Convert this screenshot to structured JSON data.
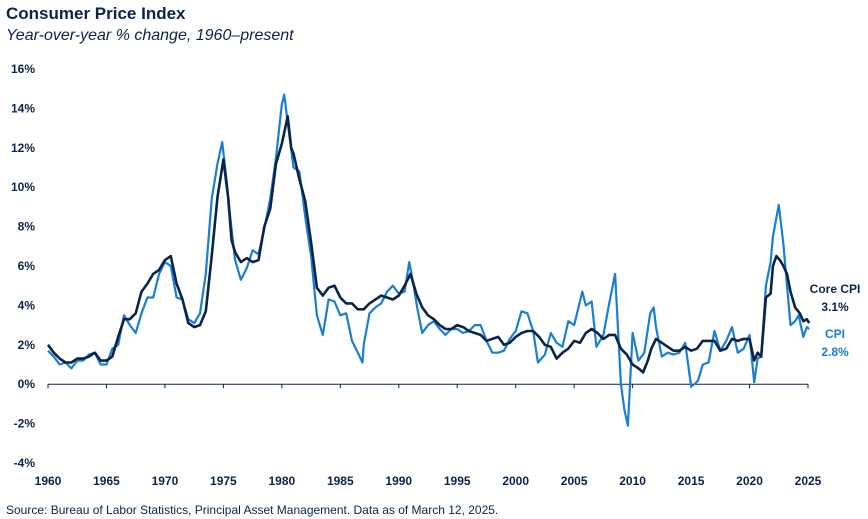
{
  "header": {
    "title": "Consumer Price Index",
    "subtitle": "Year-over-year % change, 1960–present"
  },
  "footer": {
    "source": "Source: Bureau of Labor Statistics, Principal Asset Management. Data as of March 12, 2025."
  },
  "colors": {
    "core_cpi": "#0b2447",
    "cpi": "#1a7fd0",
    "axis": "#0b2447",
    "text": "#0b2447"
  },
  "chart_data": {
    "type": "line",
    "title": "Consumer Price Index",
    "subtitle": "Year-over-year % change, 1960–present",
    "xlabel": "",
    "ylabel": "",
    "xlim": [
      1960,
      2025
    ],
    "ylim": [
      -4,
      16
    ],
    "grid": false,
    "x_ticks": [
      1960,
      1965,
      1970,
      1975,
      1980,
      1985,
      1990,
      1995,
      2000,
      2005,
      2010,
      2015,
      2020,
      2025
    ],
    "x_tick_labels": [
      "1960",
      "1965",
      "1970",
      "1975",
      "1980",
      "1985",
      "1990",
      "1995",
      "2000",
      "2005",
      "2010",
      "2015",
      "2020",
      "2025"
    ],
    "y_ticks": [
      -4,
      -2,
      0,
      2,
      4,
      6,
      8,
      10,
      12,
      14,
      16
    ],
    "y_tick_labels": [
      "-4%",
      "-2%",
      "0%",
      "2%",
      "4%",
      "6%",
      "8%",
      "10%",
      "12%",
      "14%",
      "16%"
    ],
    "series": [
      {
        "name": "CPI",
        "end_name": "CPI",
        "end_value_label": "2.8%",
        "points": [
          [
            1960,
            1.7
          ],
          [
            1960.5,
            1.4
          ],
          [
            1961,
            1.0
          ],
          [
            1961.5,
            1.1
          ],
          [
            1962,
            0.8
          ],
          [
            1962.5,
            1.2
          ],
          [
            1963,
            1.2
          ],
          [
            1963.5,
            1.5
          ],
          [
            1964,
            1.6
          ],
          [
            1964.5,
            1.0
          ],
          [
            1965,
            1.0
          ],
          [
            1965.5,
            1.8
          ],
          [
            1966,
            2.0
          ],
          [
            1966.5,
            3.5
          ],
          [
            1967,
            3.0
          ],
          [
            1967.5,
            2.6
          ],
          [
            1968,
            3.6
          ],
          [
            1968.5,
            4.4
          ],
          [
            1969,
            4.4
          ],
          [
            1969.5,
            5.6
          ],
          [
            1970,
            6.2
          ],
          [
            1970.5,
            6.0
          ],
          [
            1971,
            4.4
          ],
          [
            1971.5,
            4.3
          ],
          [
            1972,
            3.3
          ],
          [
            1972.5,
            3.1
          ],
          [
            1973,
            3.6
          ],
          [
            1973.5,
            5.6
          ],
          [
            1974,
            9.4
          ],
          [
            1974.5,
            11.2
          ],
          [
            1974.9,
            12.3
          ],
          [
            1975.3,
            10.2
          ],
          [
            1975.6,
            8.4
          ],
          [
            1976,
            6.3
          ],
          [
            1976.5,
            5.3
          ],
          [
            1977,
            5.9
          ],
          [
            1977.5,
            6.8
          ],
          [
            1978,
            6.6
          ],
          [
            1978.5,
            7.9
          ],
          [
            1979,
            9.4
          ],
          [
            1979.5,
            11.5
          ],
          [
            1980,
            14.2
          ],
          [
            1980.2,
            14.7
          ],
          [
            1980.6,
            12.8
          ],
          [
            1981,
            11.0
          ],
          [
            1981.5,
            10.8
          ],
          [
            1982,
            8.5
          ],
          [
            1982.5,
            6.5
          ],
          [
            1983,
            3.5
          ],
          [
            1983.5,
            2.5
          ],
          [
            1984,
            4.3
          ],
          [
            1984.5,
            4.2
          ],
          [
            1985,
            3.5
          ],
          [
            1985.5,
            3.6
          ],
          [
            1986,
            2.2
          ],
          [
            1986.5,
            1.6
          ],
          [
            1986.9,
            1.1
          ],
          [
            1987,
            2.0
          ],
          [
            1987.5,
            3.6
          ],
          [
            1988,
            3.9
          ],
          [
            1988.5,
            4.1
          ],
          [
            1989,
            4.7
          ],
          [
            1989.5,
            5.0
          ],
          [
            1990,
            4.6
          ],
          [
            1990.5,
            4.7
          ],
          [
            1990.9,
            6.2
          ],
          [
            1991.3,
            4.9
          ],
          [
            1991.6,
            3.8
          ],
          [
            1992,
            2.6
          ],
          [
            1992.5,
            3.0
          ],
          [
            1993,
            3.2
          ],
          [
            1993.5,
            2.8
          ],
          [
            1994,
            2.5
          ],
          [
            1994.5,
            2.8
          ],
          [
            1995,
            2.8
          ],
          [
            1995.5,
            2.6
          ],
          [
            1996,
            2.7
          ],
          [
            1996.5,
            3.0
          ],
          [
            1997,
            3.0
          ],
          [
            1997.5,
            2.2
          ],
          [
            1998,
            1.6
          ],
          [
            1998.5,
            1.6
          ],
          [
            1999,
            1.7
          ],
          [
            1999.5,
            2.3
          ],
          [
            2000,
            2.7
          ],
          [
            2000.5,
            3.7
          ],
          [
            2001,
            3.6
          ],
          [
            2001.5,
            2.7
          ],
          [
            2001.9,
            1.1
          ],
          [
            2002.5,
            1.5
          ],
          [
            2003,
            2.6
          ],
          [
            2003.5,
            2.1
          ],
          [
            2004,
            1.9
          ],
          [
            2004.5,
            3.2
          ],
          [
            2005,
            3.0
          ],
          [
            2005.7,
            4.7
          ],
          [
            2006,
            4.0
          ],
          [
            2006.5,
            4.2
          ],
          [
            2006.9,
            1.9
          ],
          [
            2007.5,
            2.5
          ],
          [
            2008,
            4.1
          ],
          [
            2008.5,
            5.6
          ],
          [
            2009,
            0.0
          ],
          [
            2009.3,
            -1.3
          ],
          [
            2009.6,
            -2.1
          ],
          [
            2010,
            2.6
          ],
          [
            2010.5,
            1.2
          ],
          [
            2011,
            1.6
          ],
          [
            2011.5,
            3.6
          ],
          [
            2011.8,
            3.9
          ],
          [
            2012,
            2.9
          ],
          [
            2012.5,
            1.4
          ],
          [
            2013,
            1.6
          ],
          [
            2013.5,
            1.5
          ],
          [
            2014,
            1.6
          ],
          [
            2014.5,
            2.1
          ],
          [
            2015,
            -0.1
          ],
          [
            2015.3,
            0.0
          ],
          [
            2015.6,
            0.2
          ],
          [
            2016,
            1.0
          ],
          [
            2016.5,
            1.1
          ],
          [
            2017,
            2.7
          ],
          [
            2017.5,
            1.7
          ],
          [
            2018,
            2.2
          ],
          [
            2018.5,
            2.9
          ],
          [
            2019,
            1.6
          ],
          [
            2019.5,
            1.8
          ],
          [
            2020,
            2.5
          ],
          [
            2020.4,
            0.1
          ],
          [
            2020.7,
            1.3
          ],
          [
            2021,
            1.4
          ],
          [
            2021.4,
            5.0
          ],
          [
            2021.8,
            6.2
          ],
          [
            2022,
            7.5
          ],
          [
            2022.5,
            9.1
          ],
          [
            2022.9,
            7.1
          ],
          [
            2023.2,
            5.0
          ],
          [
            2023.5,
            3.0
          ],
          [
            2023.9,
            3.2
          ],
          [
            2024.2,
            3.5
          ],
          [
            2024.6,
            2.4
          ],
          [
            2024.9,
            2.9
          ],
          [
            2025.1,
            2.8
          ]
        ]
      },
      {
        "name": "Core CPI",
        "end_name": "Core CPI",
        "end_value_label": "3.1%",
        "points": [
          [
            1960,
            2.0
          ],
          [
            1960.5,
            1.6
          ],
          [
            1961,
            1.3
          ],
          [
            1961.5,
            1.1
          ],
          [
            1962,
            1.1
          ],
          [
            1962.5,
            1.3
          ],
          [
            1963,
            1.3
          ],
          [
            1963.5,
            1.4
          ],
          [
            1964,
            1.6
          ],
          [
            1964.5,
            1.2
          ],
          [
            1965,
            1.2
          ],
          [
            1965.5,
            1.4
          ],
          [
            1966,
            2.4
          ],
          [
            1966.5,
            3.3
          ],
          [
            1967,
            3.3
          ],
          [
            1967.5,
            3.6
          ],
          [
            1968,
            4.7
          ],
          [
            1968.5,
            5.1
          ],
          [
            1969,
            5.6
          ],
          [
            1969.5,
            5.8
          ],
          [
            1970,
            6.3
          ],
          [
            1970.5,
            6.5
          ],
          [
            1971,
            5.1
          ],
          [
            1971.5,
            4.3
          ],
          [
            1972,
            3.1
          ],
          [
            1972.5,
            2.9
          ],
          [
            1973,
            3.0
          ],
          [
            1973.5,
            3.7
          ],
          [
            1974,
            6.5
          ],
          [
            1974.5,
            9.5
          ],
          [
            1975,
            11.4
          ],
          [
            1975.4,
            9.5
          ],
          [
            1975.7,
            7.3
          ],
          [
            1976,
            6.7
          ],
          [
            1976.5,
            6.2
          ],
          [
            1977,
            6.4
          ],
          [
            1977.5,
            6.2
          ],
          [
            1978,
            6.3
          ],
          [
            1978.5,
            8.0
          ],
          [
            1979,
            8.9
          ],
          [
            1979.5,
            11.2
          ],
          [
            1980,
            12.2
          ],
          [
            1980.5,
            13.6
          ],
          [
            1980.8,
            12.0
          ],
          [
            1981,
            11.7
          ],
          [
            1981.5,
            10.4
          ],
          [
            1982,
            9.3
          ],
          [
            1982.5,
            7.2
          ],
          [
            1983,
            4.9
          ],
          [
            1983.5,
            4.5
          ],
          [
            1984,
            4.9
          ],
          [
            1984.5,
            5.0
          ],
          [
            1985,
            4.4
          ],
          [
            1985.5,
            4.1
          ],
          [
            1986,
            4.1
          ],
          [
            1986.5,
            3.8
          ],
          [
            1987,
            3.8
          ],
          [
            1987.5,
            4.1
          ],
          [
            1988,
            4.3
          ],
          [
            1988.5,
            4.5
          ],
          [
            1989,
            4.4
          ],
          [
            1989.5,
            4.3
          ],
          [
            1990,
            4.5
          ],
          [
            1990.5,
            5.0
          ],
          [
            1991,
            5.6
          ],
          [
            1991.5,
            4.6
          ],
          [
            1992,
            3.9
          ],
          [
            1992.5,
            3.5
          ],
          [
            1993,
            3.3
          ],
          [
            1993.5,
            3.0
          ],
          [
            1994,
            2.8
          ],
          [
            1994.5,
            2.8
          ],
          [
            1995,
            3.0
          ],
          [
            1995.5,
            2.9
          ],
          [
            1996,
            2.7
          ],
          [
            1996.5,
            2.6
          ],
          [
            1997,
            2.5
          ],
          [
            1997.5,
            2.2
          ],
          [
            1998,
            2.3
          ],
          [
            1998.5,
            2.4
          ],
          [
            1999,
            2.0
          ],
          [
            1999.5,
            2.1
          ],
          [
            2000,
            2.4
          ],
          [
            2000.5,
            2.6
          ],
          [
            2001,
            2.7
          ],
          [
            2001.5,
            2.7
          ],
          [
            2002,
            2.4
          ],
          [
            2002.5,
            2.0
          ],
          [
            2003,
            1.9
          ],
          [
            2003.5,
            1.3
          ],
          [
            2004,
            1.6
          ],
          [
            2004.5,
            1.8
          ],
          [
            2005,
            2.2
          ],
          [
            2005.5,
            2.1
          ],
          [
            2006,
            2.6
          ],
          [
            2006.5,
            2.8
          ],
          [
            2007,
            2.6
          ],
          [
            2007.5,
            2.3
          ],
          [
            2008,
            2.5
          ],
          [
            2008.5,
            2.5
          ],
          [
            2009,
            1.8
          ],
          [
            2009.5,
            1.5
          ],
          [
            2010,
            1.0
          ],
          [
            2010.5,
            0.8
          ],
          [
            2010.9,
            0.6
          ],
          [
            2011.3,
            1.2
          ],
          [
            2011.6,
            1.8
          ],
          [
            2012,
            2.3
          ],
          [
            2012.5,
            2.1
          ],
          [
            2013,
            1.9
          ],
          [
            2013.5,
            1.7
          ],
          [
            2014,
            1.7
          ],
          [
            2014.5,
            1.9
          ],
          [
            2015,
            1.7
          ],
          [
            2015.5,
            1.8
          ],
          [
            2016,
            2.2
          ],
          [
            2016.5,
            2.2
          ],
          [
            2017,
            2.2
          ],
          [
            2017.5,
            1.7
          ],
          [
            2018,
            1.8
          ],
          [
            2018.5,
            2.3
          ],
          [
            2019,
            2.2
          ],
          [
            2019.5,
            2.3
          ],
          [
            2020,
            2.3
          ],
          [
            2020.4,
            1.2
          ],
          [
            2020.7,
            1.6
          ],
          [
            2021,
            1.4
          ],
          [
            2021.4,
            4.4
          ],
          [
            2021.8,
            4.6
          ],
          [
            2022,
            6.0
          ],
          [
            2022.3,
            6.5
          ],
          [
            2022.6,
            6.3
          ],
          [
            2022.9,
            6.0
          ],
          [
            2023.2,
            5.6
          ],
          [
            2023.5,
            4.7
          ],
          [
            2023.9,
            3.9
          ],
          [
            2024.3,
            3.6
          ],
          [
            2024.6,
            3.2
          ],
          [
            2024.9,
            3.3
          ],
          [
            2025.1,
            3.1
          ]
        ]
      }
    ]
  }
}
